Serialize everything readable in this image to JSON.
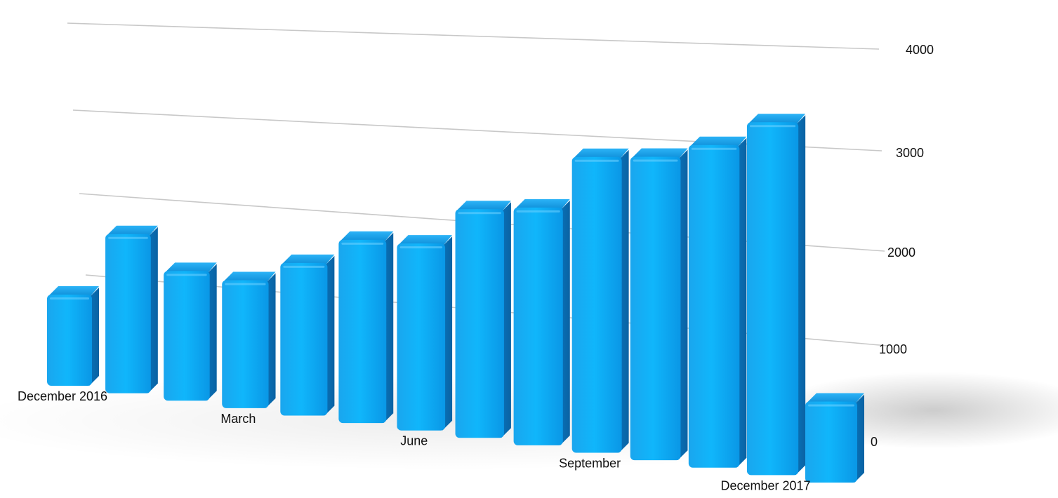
{
  "chart_data": {
    "type": "bar",
    "title": "",
    "xlabel": "",
    "ylabel": "",
    "ylim": [
      0,
      4000
    ],
    "yticks": [
      0,
      1000,
      2000,
      3000,
      4000
    ],
    "grid": true,
    "categories": [
      "December 2016",
      "",
      "",
      "March",
      "",
      "",
      "June",
      "",
      "",
      "September",
      "",
      "",
      "December 2017",
      ""
    ],
    "values": [
      650,
      1150,
      950,
      950,
      1150,
      1400,
      1450,
      1800,
      1900,
      2400,
      2500,
      2700,
      3000,
      700
    ],
    "bar_color": "#12a8f4"
  }
}
